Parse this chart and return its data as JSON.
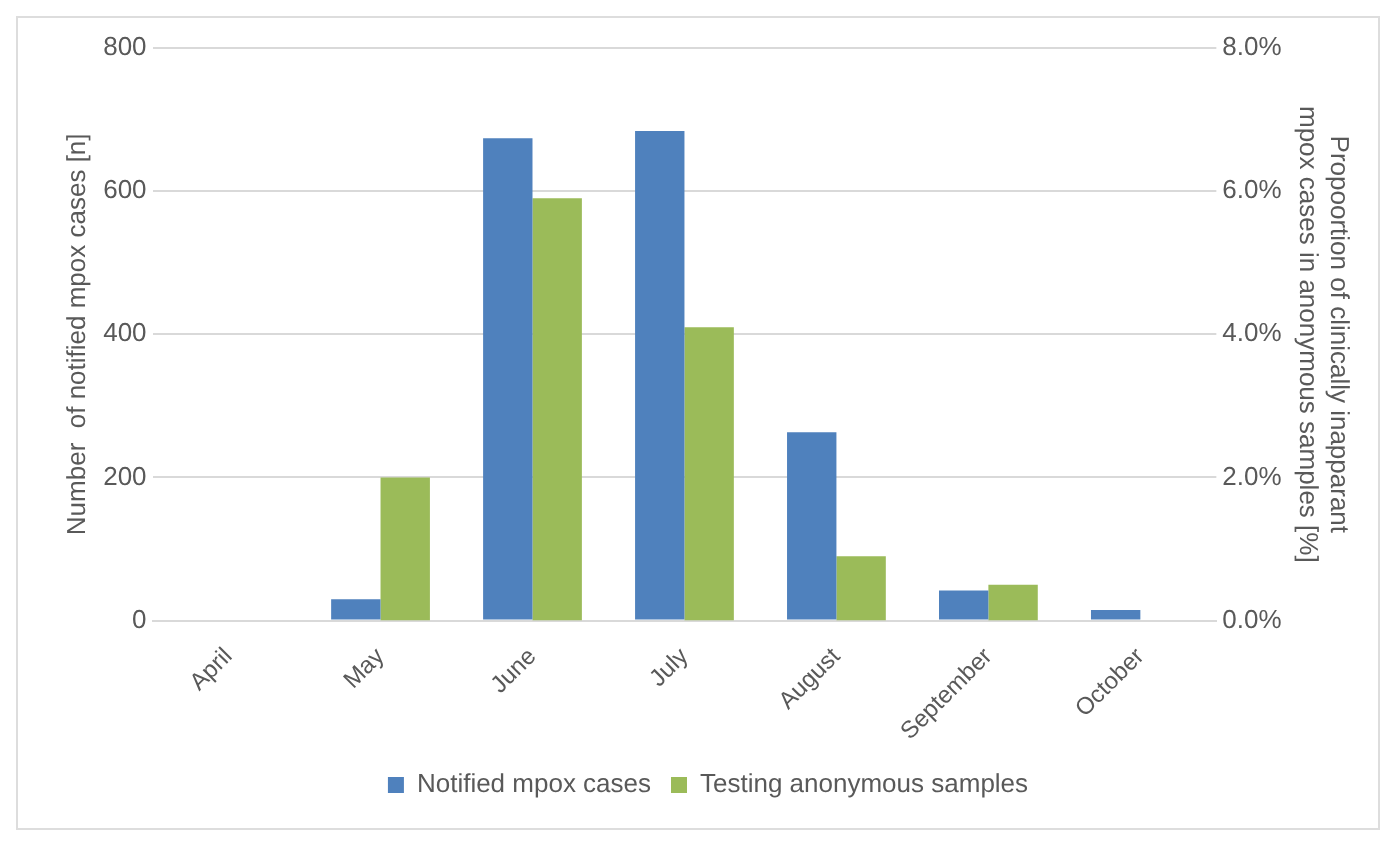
{
  "chart_data": {
    "type": "bar",
    "categories": [
      "April",
      "May",
      "June",
      "July",
      "August",
      "September",
      "October"
    ],
    "ylabel": "Number  of notified mpox cases [n]",
    "y2label": "Propoortion of clinically inapparant mpox cases in anonymous samples [%]",
    "series": [
      {
        "name": "Notified mpox cases",
        "color": "#4f81bd",
        "values": [
          0,
          30,
          674,
          684,
          263,
          42,
          15
        ]
      },
      {
        "name": "Testing anonymous samples",
        "color": "#9bbb59",
        "axis": "y2",
        "values": [
          0,
          2.0,
          5.9,
          4.1,
          0.9,
          0.5,
          null
        ]
      }
    ],
    "ylim": [
      0,
      800
    ],
    "yticks": [
      0,
      200,
      400,
      600,
      800
    ],
    "y2lim": [
      0,
      8
    ],
    "y2ticks": [
      {
        "value": 0,
        "label": "0.0%"
      },
      {
        "value": 2,
        "label": "2.0%"
      },
      {
        "value": 4,
        "label": "4.0%"
      },
      {
        "value": 6,
        "label": "6.0%"
      },
      {
        "value": 8,
        "label": "8.0%"
      }
    ],
    "grid": "y",
    "legend": "bottom"
  }
}
